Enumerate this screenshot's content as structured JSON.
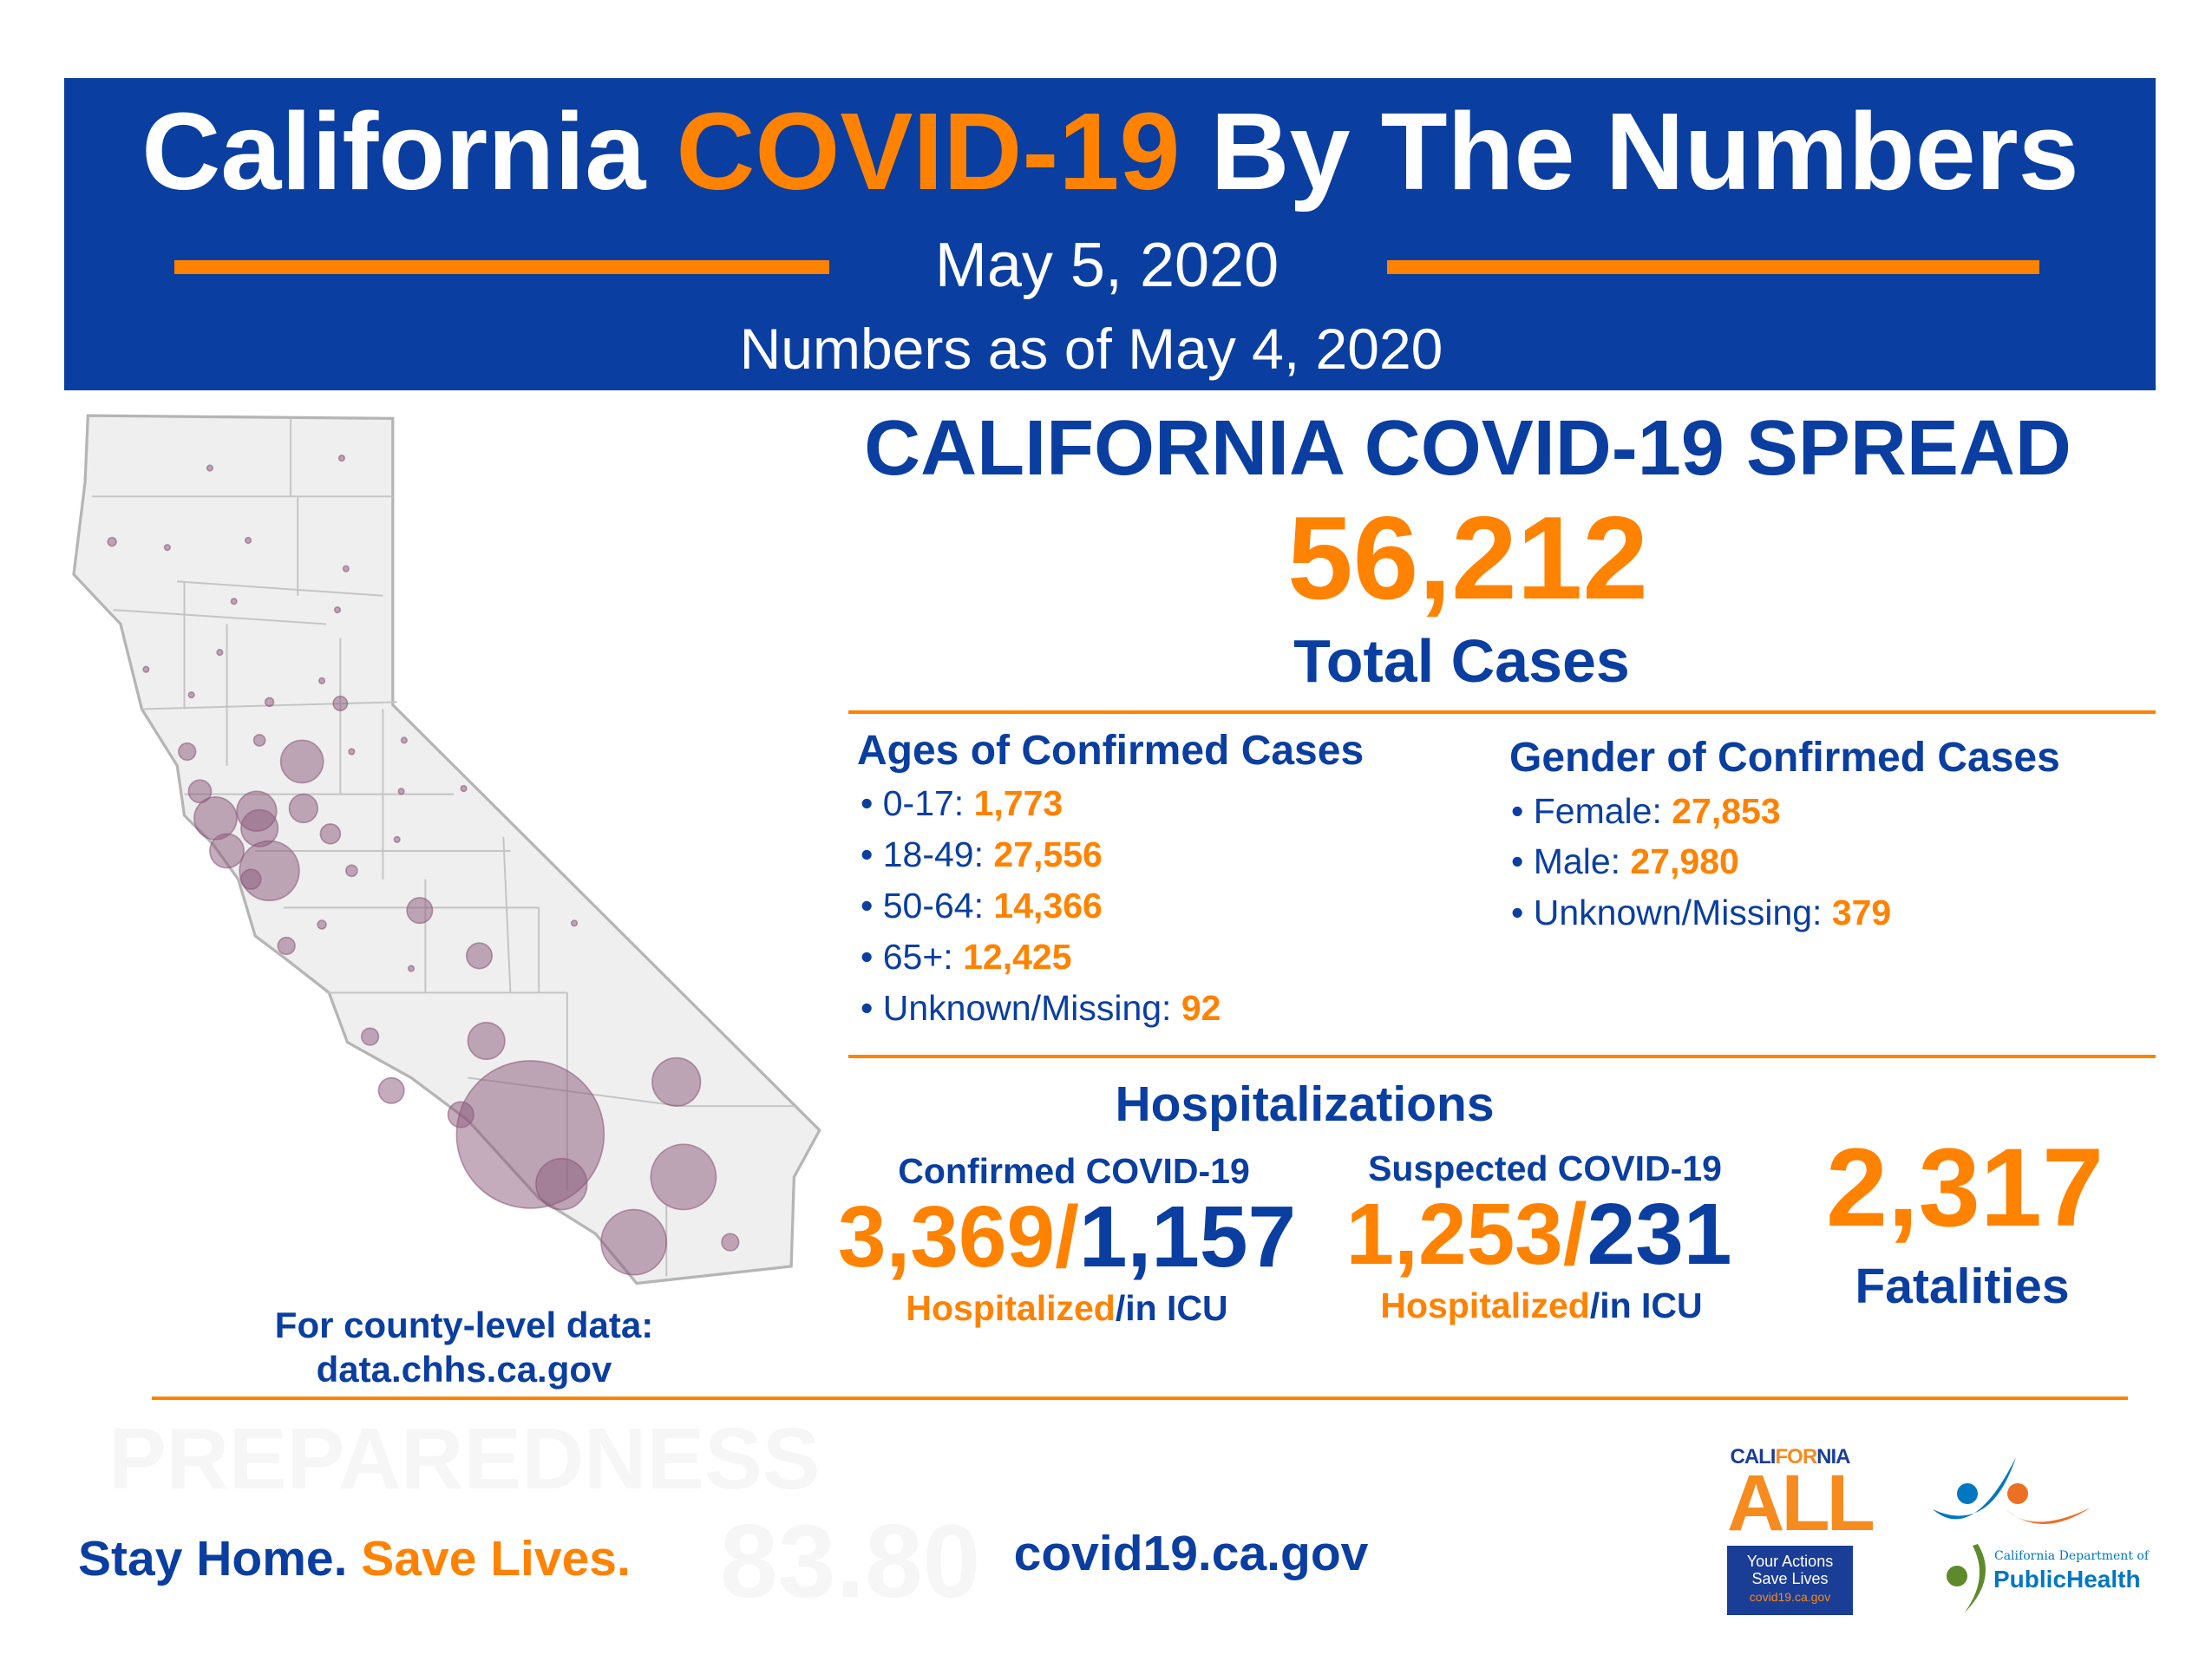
{
  "header": {
    "title_part1": "California ",
    "title_part2": "COVID-19",
    "title_part3": " By The Numbers",
    "date": "May 5, 2020",
    "as_of": "Numbers as of May 4, 2020"
  },
  "spread": {
    "heading": "CALIFORNIA COVID-19 SPREAD",
    "total": "56,212",
    "total_label": "Total Cases"
  },
  "ages": {
    "heading": "Ages of Confirmed Cases",
    "items": [
      {
        "label": "0-17: ",
        "value": "1,773"
      },
      {
        "label": "18-49: ",
        "value": "27,556"
      },
      {
        "label": "50-64: ",
        "value": "14,366"
      },
      {
        "label": "65+: ",
        "value": "12,425"
      },
      {
        "label": "Unknown/Missing: ",
        "value": "92"
      }
    ]
  },
  "gender": {
    "heading": "Gender of Confirmed Cases",
    "items": [
      {
        "label": "Female: ",
        "value": "27,853"
      },
      {
        "label": "Male: ",
        "value": "27,980"
      },
      {
        "label": "Unknown/Missing: ",
        "value": "379"
      }
    ]
  },
  "hospitalizations": {
    "heading": "Hospitalizations",
    "confirmed": {
      "label": "Confirmed COVID-19",
      "hospitalized": "3,369/",
      "icu": "1,157",
      "sub_hosp": "Hospitalized",
      "sub_icu": "/in ICU"
    },
    "suspected": {
      "label": "Suspected COVID-19",
      "hospitalized": "1,253/",
      "icu": "231",
      "sub_hosp": "Hospitalized",
      "sub_icu": "/in ICU"
    }
  },
  "fatalities": {
    "value": "2,317",
    "label": "Fatalities"
  },
  "map": {
    "caption_line1": "For county-level data:",
    "caption_line2": "data.chhs.ca.gov",
    "bubble_color": "#8b5a7c"
  },
  "footer": {
    "slogan_part1": "Stay Home. ",
    "slogan_part2": "Save Lives.",
    "website": "covid19.ca.gov",
    "watermark1": "PREPAREDNESS",
    "watermark2": "83.80"
  },
  "logos": {
    "ca_all_top": "CALIFORNIA",
    "ca_all_big": "ALL",
    "ca_all_l1": "Your Actions",
    "ca_all_l2": "Save Lives",
    "ca_all_url": "covid19.ca.gov",
    "cdph_l1": "California Department of",
    "cdph_l2": "PublicHealth"
  },
  "colors": {
    "blue": "#0a3ea0",
    "orange": "#ff8200"
  }
}
